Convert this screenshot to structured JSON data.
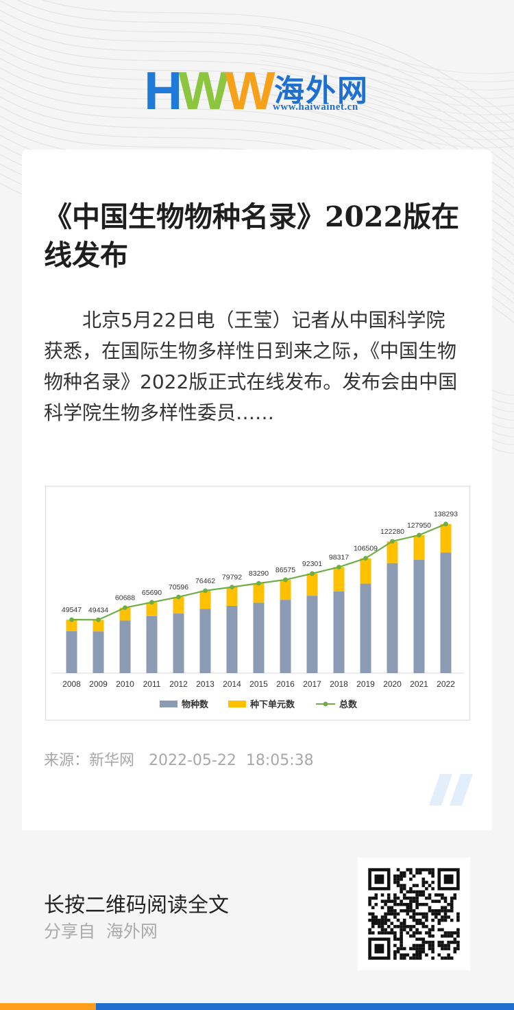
{
  "logo": {
    "letters": [
      "H",
      "W",
      "W"
    ],
    "colors": [
      "#1f7ad8",
      "#8cc63f",
      "#f7a11a"
    ],
    "cn_name": "海外网",
    "url": "www.haiwainet.cn"
  },
  "article": {
    "title": "《中国生物物种名录》2022版在线发布",
    "summary": "北京5月22日电（王莹）记者从中国科学院获悉，在国际生物多样性日到来之际，《中国生物物种名录》2022版正式在线发布。发布会由中国科学院生物多样性委员……",
    "source": "来源：新华网   2022-05-22  18:05:38"
  },
  "chart_data": {
    "type": "bar",
    "categories": [
      "2008",
      "2009",
      "2010",
      "2011",
      "2012",
      "2013",
      "2014",
      "2015",
      "2016",
      "2017",
      "2018",
      "2019",
      "2020",
      "2021",
      "2022"
    ],
    "series": [
      {
        "name": "物种数",
        "type": "bar",
        "color": "#8a9bb3",
        "values": [
          38900,
          38700,
          48700,
          52900,
          55300,
          59700,
          62400,
          65300,
          68000,
          71800,
          75800,
          83000,
          102000,
          105000,
          111700
        ]
      },
      {
        "name": "种下单元数",
        "type": "bar-stacked",
        "color": "#ffc000",
        "values": [
          10647,
          10734,
          11988,
          12790,
          15296,
          16762,
          17392,
          17990,
          18575,
          20501,
          22517,
          23509,
          20280,
          22950,
          26593
        ]
      },
      {
        "name": "总数",
        "type": "line",
        "color": "#70ad47",
        "values": [
          49547,
          49434,
          60688,
          65690,
          70596,
          76462,
          79792,
          83290,
          86575,
          92301,
          98317,
          106509,
          122280,
          127950,
          138293
        ]
      }
    ],
    "data_labels": [
      "49547",
      "49434",
      "60688",
      "65690",
      "70596",
      "76462",
      "79792",
      "83290",
      "86575",
      "92301",
      "98317",
      "106509",
      "122280",
      "127950",
      "138293"
    ],
    "ylim": [
      0,
      150000
    ],
    "grid": false,
    "legend_position": "bottom"
  },
  "footer": {
    "cta": "长按二维码阅读全文",
    "shared_from": "分享自  海外网"
  },
  "colors": {
    "accent_blue": "#1f6fd1",
    "accent_orange": "#ff9d1c"
  }
}
